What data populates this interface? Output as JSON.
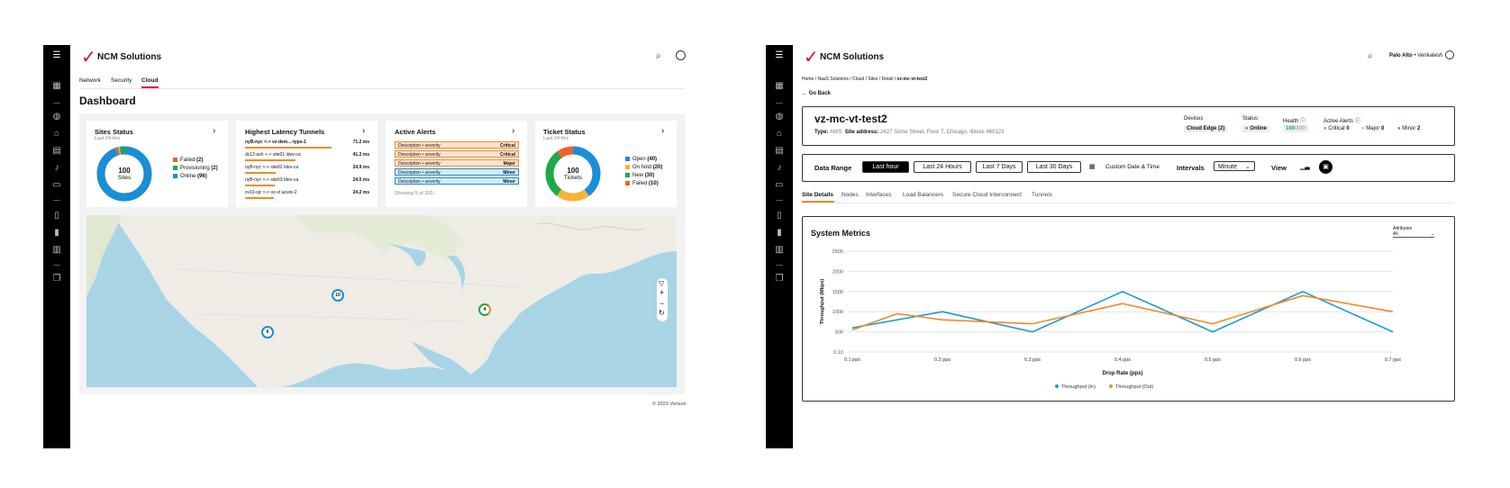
{
  "brand": {
    "name": "NCM Solutions"
  },
  "left": {
    "nav_tabs": [
      {
        "label": "Network"
      },
      {
        "label": "Security"
      },
      {
        "label": "Cloud"
      }
    ],
    "page_title": "Dashboard",
    "sites_status": {
      "title": "Sites Status",
      "subtitle": "Last 24 Hrs",
      "center_value": "100",
      "center_label": "Sites",
      "legend": [
        {
          "label": "Failed",
          "count": "(2)",
          "color": "#f0612d"
        },
        {
          "label": "Provisioning",
          "count": "(2)",
          "color": "#1fa84a"
        },
        {
          "label": "Online",
          "count": "(96)",
          "color": "#1a8ed6"
        }
      ]
    },
    "latency": {
      "title": "Highest Latency Tunnels",
      "rows": [
        {
          "name": "nyB-nyc <-> vz-dem...-type-1",
          "value": "71.2 ms",
          "bar": 0.95
        },
        {
          "name": "dc12-ash <-> site01 ldev-ca",
          "value": "41.2 ms",
          "bar": 0.55
        },
        {
          "name": "nyB-nyc <-> site02 ldev-ca",
          "value": "24.9 ms",
          "bar": 0.33
        },
        {
          "name": "nyB-nyc <-> site03 ldev-ca",
          "value": "24.5 ms",
          "bar": 0.32
        },
        {
          "name": "sv10-sjc <-> vz-vt azure-2",
          "value": "24.2 ms",
          "bar": 0.31
        }
      ]
    },
    "alerts": {
      "title": "Active Alerts",
      "rows": [
        {
          "text": "Description • severity",
          "level": "Critical",
          "bg": "#fde3cf",
          "border": "#f08a2a"
        },
        {
          "text": "Description • severity",
          "level": "Critical",
          "bg": "#fde3cf",
          "border": "#f08a2a"
        },
        {
          "text": "Description • severity",
          "level": "Major",
          "bg": "#fde3cf",
          "border": "#f08a2a"
        },
        {
          "text": "Description • severity",
          "level": "Minor",
          "bg": "#d3ebf8",
          "border": "#1a8ed6"
        },
        {
          "text": "Description • severity",
          "level": "Minor",
          "bg": "#d3ebf8",
          "border": "#1a8ed6"
        }
      ],
      "footer": "Showing 5 of 200..."
    },
    "tickets": {
      "title": "Ticket Status",
      "subtitle": "Last 24 Hrs",
      "center_value": "100",
      "center_label": "Tickets",
      "legend": [
        {
          "label": "Open",
          "count": "(40)",
          "color": "#1a8ed6"
        },
        {
          "label": "On hold",
          "count": "(20)",
          "color": "#f5b335"
        },
        {
          "label": "New",
          "count": "(30)",
          "color": "#1fa84a"
        },
        {
          "label": "Failed",
          "count": "(10)",
          "color": "#f0612d"
        }
      ]
    },
    "map_markers": [
      {
        "count": "10"
      },
      {
        "count": "6"
      },
      {
        "count": "4"
      }
    ],
    "copyright": "© 2023 Verizon"
  },
  "right": {
    "user": "Palo Alto",
    "user_sub": "Venkatesh",
    "breadcrumb": "Home / NaaS Solutions / Cloud / Sites / Detail /",
    "breadcrumb_current": "vz-mc-vt-test2",
    "go_back": "Go Back",
    "site_name": "vz-mc-vt-test2",
    "type_label": "Type:",
    "type_value": "AWS",
    "address_label": "Site address:",
    "address_value": "2427 Some Street, Floor 7, Chicago, Illinois 660123",
    "devices_label": "Devices",
    "devices_value": "Cloud Edge (2)",
    "status_label": "Status",
    "status_value": "Online",
    "health_label": "Health",
    "health_value": "100",
    "health_total": "/100",
    "active_alerts_label": "Active Alerts",
    "alert_counts": [
      {
        "label": "Critical",
        "value": "0",
        "color": "#f0612d"
      },
      {
        "label": "Major",
        "value": "0",
        "color": "#f5b335"
      },
      {
        "label": "Minor",
        "value": "2",
        "color": "#1a8ed6"
      }
    ],
    "date_range_label": "Data Range",
    "ranges": [
      {
        "label": "Last hour"
      },
      {
        "label": "Last 24 Hours"
      },
      {
        "label": "Last 7 Days"
      },
      {
        "label": "Last 30 Days"
      }
    ],
    "custom_date": "Custom Date & Time",
    "intervals_label": "Intervals",
    "interval_value": "Minute",
    "view_label": "View",
    "detail_tabs": [
      {
        "label": "Site Details"
      },
      {
        "label": "Nodes"
      },
      {
        "label": "Interfaces"
      },
      {
        "label": "Load Balancers"
      },
      {
        "label": "Secure Cloud Interconnect"
      },
      {
        "label": "Tunnels"
      }
    ],
    "metrics_title": "System Metrics",
    "attribute_label": "Attributes",
    "attribute_value": "All"
  },
  "chart_data": {
    "type": "line",
    "x": [
      "0.1 pps",
      "0.2 pps",
      "0.3 pps",
      "0.4 pps",
      "0.5 pps",
      "0.6 pps",
      "0.7 pps"
    ],
    "xlabel": "Drop Rate (pps)",
    "ylabel": "Throughput (Mbps)",
    "yticks": [
      "0.10",
      "500",
      "1000",
      "1500",
      "2000",
      "2500"
    ],
    "ylim": [
      0,
      2500
    ],
    "legend_position": "bottom",
    "series": [
      {
        "name": "Throughput (In)",
        "color": "#1a9ad6",
        "points": [
          [
            0.1,
            600
          ],
          [
            0.2,
            1000
          ],
          [
            0.3,
            500
          ],
          [
            0.4,
            1500
          ],
          [
            0.5,
            500
          ],
          [
            0.6,
            1500
          ],
          [
            0.7,
            500
          ]
        ]
      },
      {
        "name": "Throughput (Out)",
        "color": "#f08a2a",
        "points": [
          [
            0.1,
            550
          ],
          [
            0.15,
            950
          ],
          [
            0.2,
            800
          ],
          [
            0.3,
            700
          ],
          [
            0.4,
            1200
          ],
          [
            0.5,
            700
          ],
          [
            0.6,
            1400
          ],
          [
            0.7,
            1000
          ]
        ]
      }
    ]
  }
}
